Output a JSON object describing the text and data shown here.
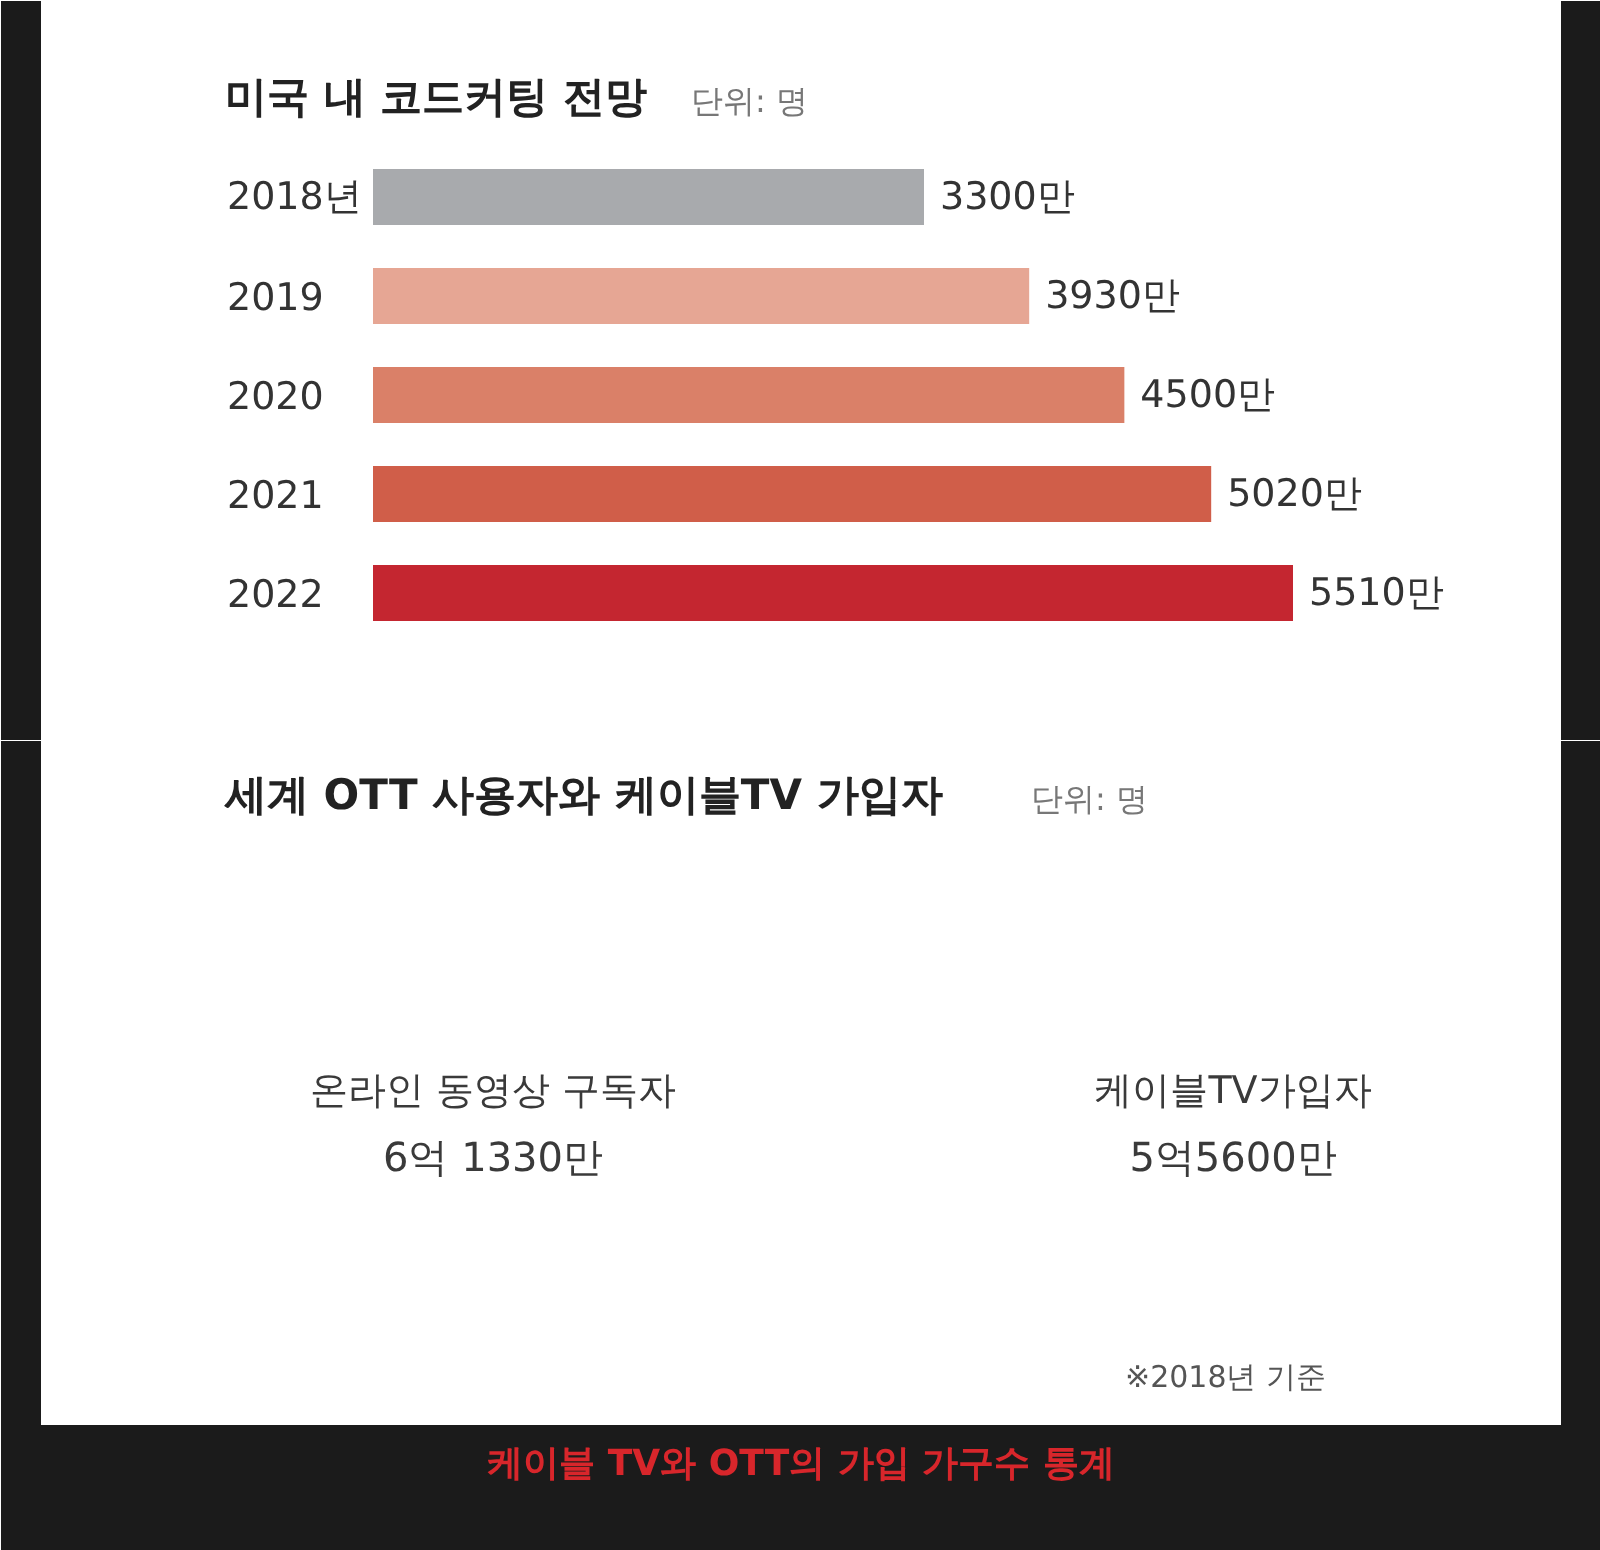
{
  "chart_data": [
    {
      "type": "bar",
      "orientation": "horizontal",
      "title": "미국 내 코드커팅 전망",
      "subtitle": "단위: 명",
      "categories": [
        "2018년",
        "2019",
        "2020",
        "2021",
        "2022"
      ],
      "values": [
        3300,
        3930,
        4500,
        5020,
        5510
      ],
      "value_labels": [
        "3300만",
        "3930만",
        "4500만",
        "5020만",
        "5510만"
      ],
      "colors": [
        "#a8aaad",
        "#e6a694",
        "#da8068",
        "#d05e49",
        "#c42630"
      ]
    },
    {
      "type": "other",
      "title": "세계 OTT 사용자와 케이블TV 가입자",
      "subtitle": "단위: 명",
      "categories": [
        "온라인 동영상 구독자",
        "케이블TV가입자"
      ],
      "value_labels": [
        "6억 1330만",
        "5억5600만"
      ],
      "annotations": [
        "※2018년 기준",
        "케이블 TV와 OTT의 가입 가구수 통계"
      ]
    }
  ]
}
